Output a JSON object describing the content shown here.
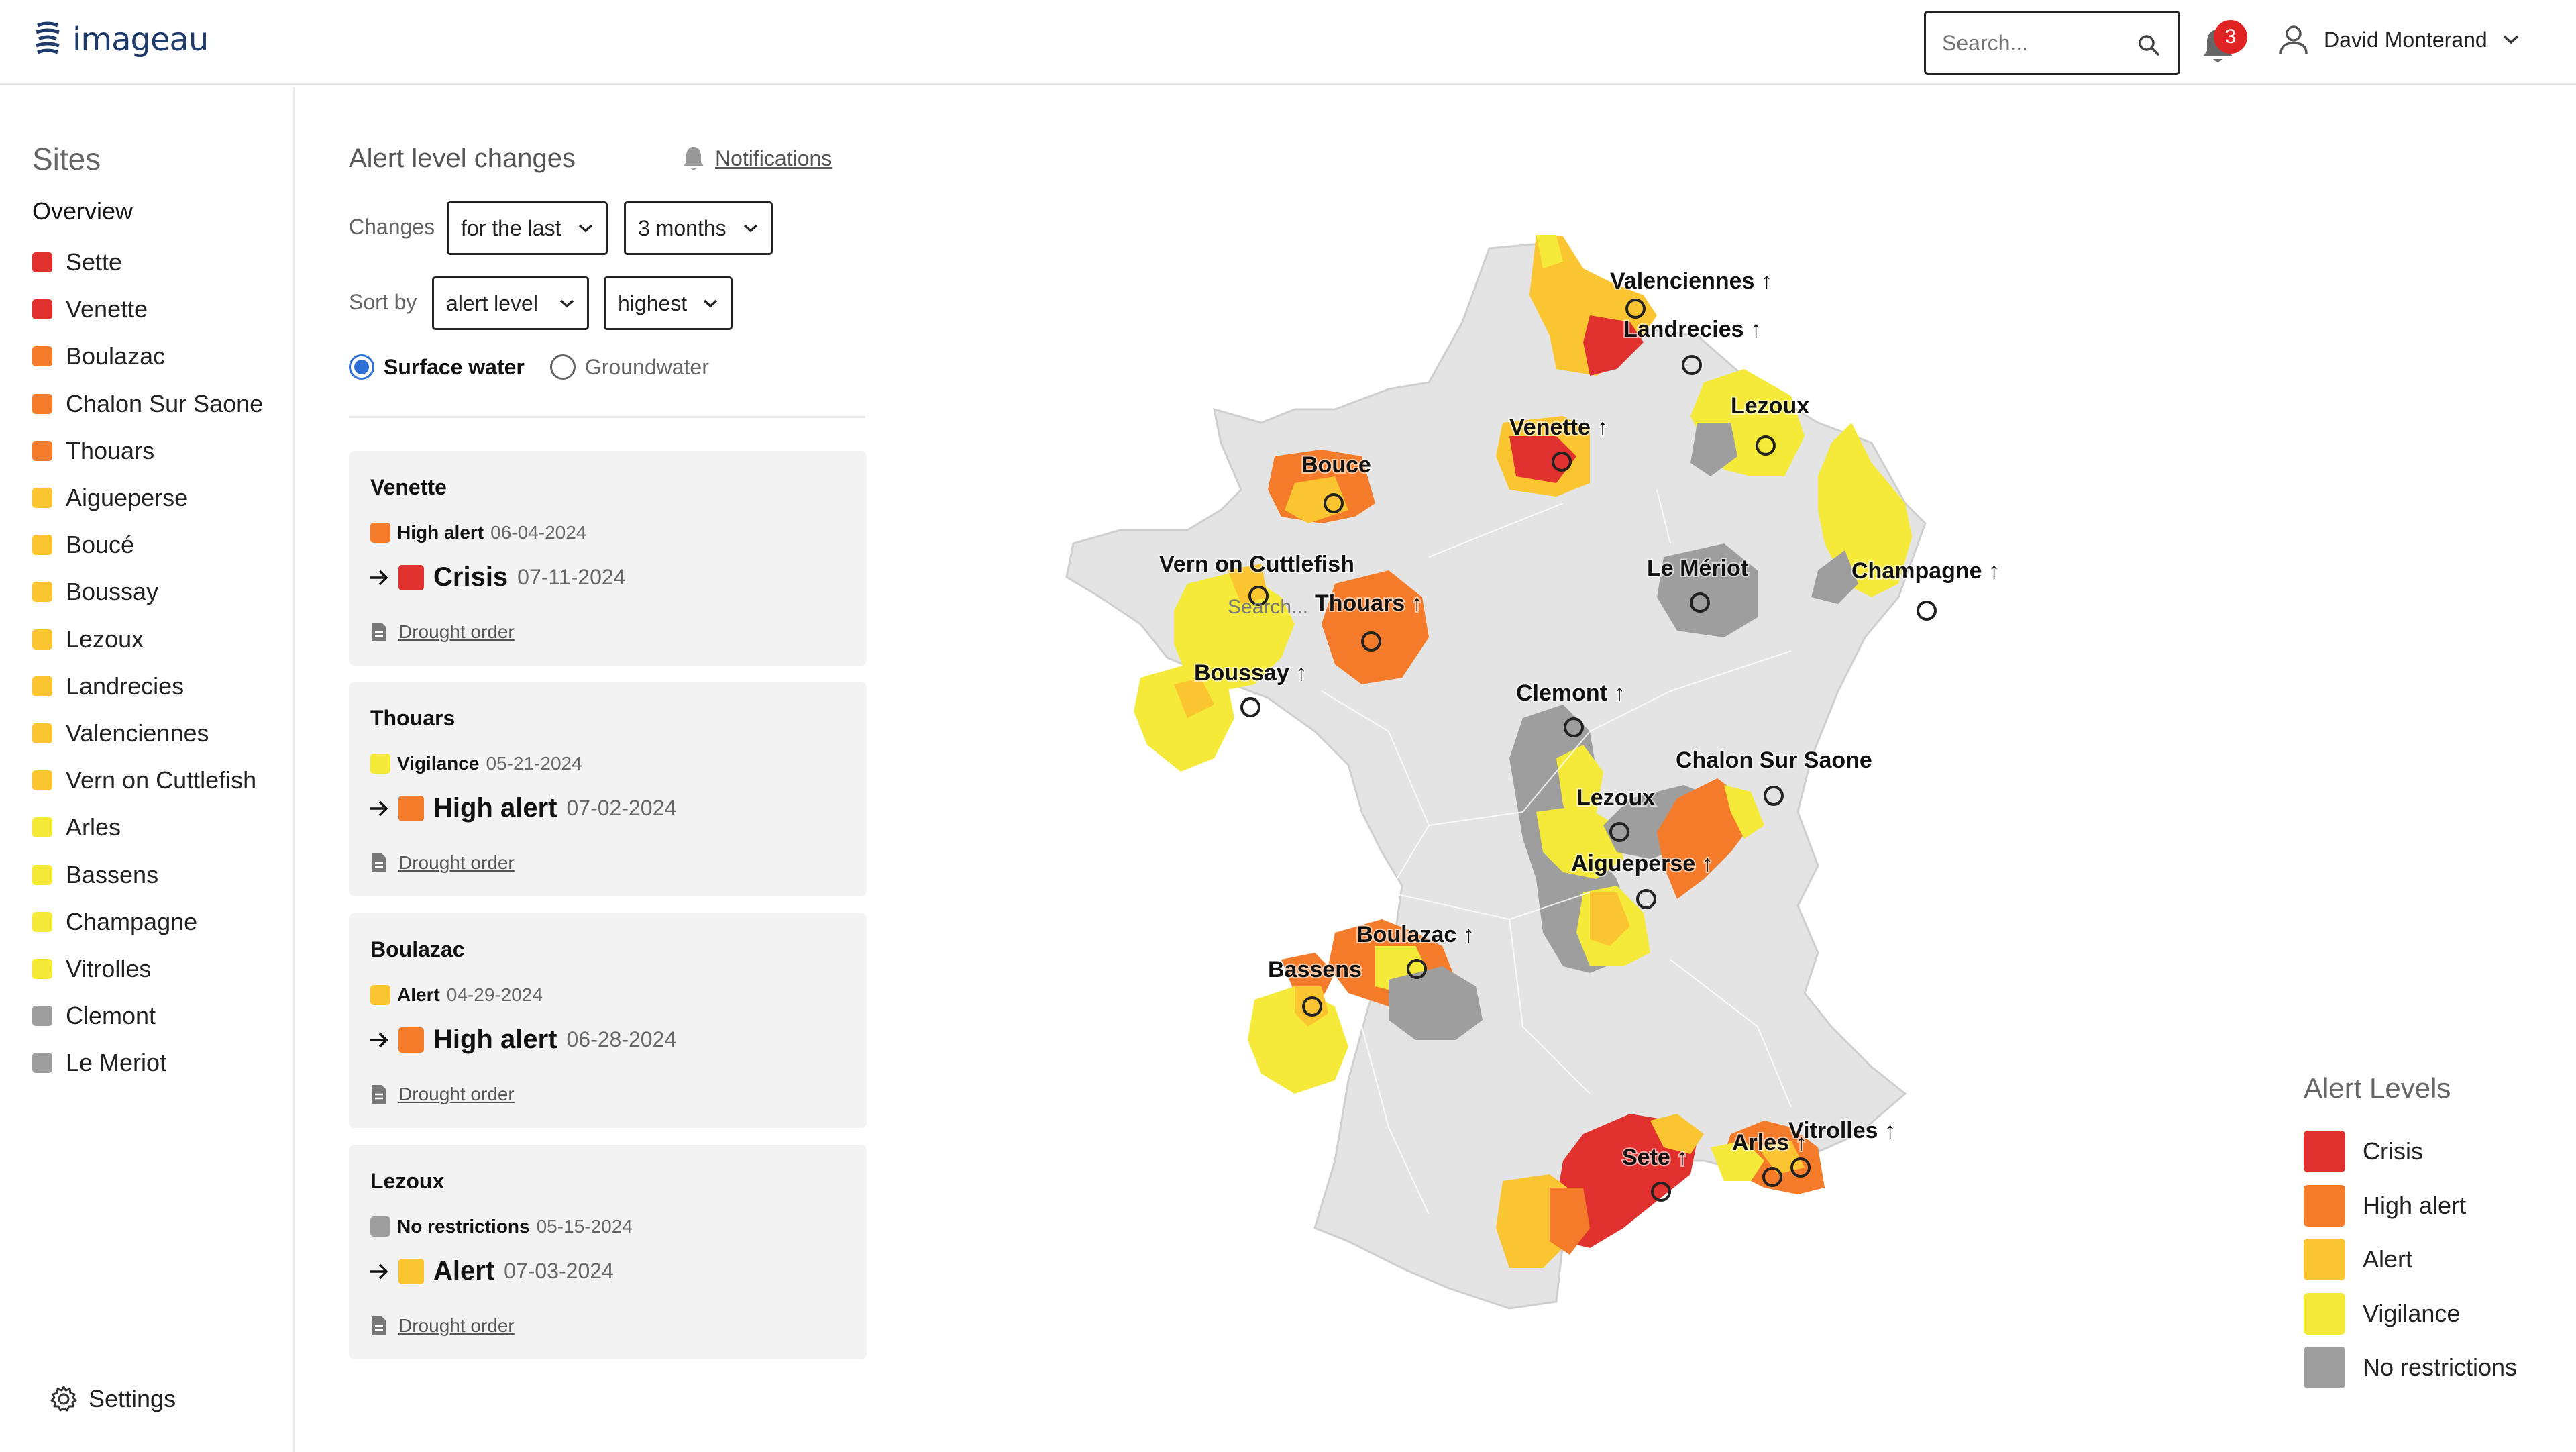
{
  "app": {
    "name": "imageau"
  },
  "header": {
    "search_placeholder": "Search...",
    "notification_count": "3",
    "user_name": "David Monterand"
  },
  "colors": {
    "crisis": "#e0312e",
    "high_alert": "#f47b2a",
    "alert": "#fbc531",
    "vigilance": "#f5ea3a",
    "no_restrictions": "#9e9e9e",
    "accent": "#2f6fd8"
  },
  "sidebar": {
    "title": "Sites",
    "overview_label": "Overview",
    "sites": [
      {
        "name": "Sette",
        "level": "crisis"
      },
      {
        "name": "Venette",
        "level": "crisis"
      },
      {
        "name": "Boulazac",
        "level": "high_alert"
      },
      {
        "name": "Chalon Sur Saone",
        "level": "high_alert"
      },
      {
        "name": "Thouars",
        "level": "high_alert"
      },
      {
        "name": "Aigueperse",
        "level": "alert"
      },
      {
        "name": "Boucé",
        "level": "alert"
      },
      {
        "name": "Boussay",
        "level": "alert"
      },
      {
        "name": "Lezoux",
        "level": "alert"
      },
      {
        "name": "Landrecies",
        "level": "alert"
      },
      {
        "name": "Valenciennes",
        "level": "alert"
      },
      {
        "name": "Vern on Cuttlefish",
        "level": "alert"
      },
      {
        "name": "Arles",
        "level": "vigilance"
      },
      {
        "name": "Bassens",
        "level": "vigilance"
      },
      {
        "name": "Champagne",
        "level": "vigilance"
      },
      {
        "name": "Vitrolles",
        "level": "vigilance"
      },
      {
        "name": "Clemont",
        "level": "no_restrictions"
      },
      {
        "name": "Le Meriot",
        "level": "no_restrictions"
      }
    ],
    "settings_label": "Settings"
  },
  "alerts_panel": {
    "title": "Alert level changes",
    "notifications_label": "Notifications",
    "changes_label": "Changes",
    "changes_period_select": "for the last",
    "changes_range_select": "3 months",
    "sort_label": "Sort by",
    "sort_field_select": "alert level",
    "sort_order_select": "highest",
    "water_types": [
      {
        "label": "Surface water",
        "selected": true
      },
      {
        "label": "Groundwater",
        "selected": false
      }
    ],
    "document_label": "Drought order",
    "cards": [
      {
        "site": "Venette",
        "from_level": "High alert",
        "from_level_key": "high_alert",
        "from_date": "06-04-2024",
        "to_level": "Crisis",
        "to_level_key": "crisis",
        "to_date": "07-11-2024"
      },
      {
        "site": "Thouars",
        "from_level": "Vigilance",
        "from_level_key": "vigilance",
        "from_date": "05-21-2024",
        "to_level": "High alert",
        "to_level_key": "high_alert",
        "to_date": "07-02-2024"
      },
      {
        "site": "Boulazac",
        "from_level": "Alert",
        "from_level_key": "alert",
        "from_date": "04-29-2024",
        "to_level": "High alert",
        "to_level_key": "high_alert",
        "to_date": "06-28-2024"
      },
      {
        "site": "Lezoux",
        "from_level": "No restrictions",
        "from_level_key": "no_restrictions",
        "from_date": "05-15-2024",
        "to_level": "Alert",
        "to_level_key": "alert",
        "to_date": "07-03-2024"
      }
    ]
  },
  "map": {
    "markers": [
      {
        "name": "Valenciennes",
        "arrow": "↑"
      },
      {
        "name": "Landrecies",
        "arrow": "↑"
      },
      {
        "name": "Lezoux",
        "arrow": ""
      },
      {
        "name": "Venette",
        "arrow": "↑"
      },
      {
        "name": "Bouce",
        "arrow": ""
      },
      {
        "name": "Vern on Cuttlefish",
        "arrow": ""
      },
      {
        "name": "Thouars",
        "arrow": "↑"
      },
      {
        "name": "Le Mériot",
        "arrow": ""
      },
      {
        "name": "Champagne",
        "arrow": "↑"
      },
      {
        "name": "Boussay",
        "arrow": "↑"
      },
      {
        "name": "Clemont",
        "arrow": "↑"
      },
      {
        "name": "Chalon Sur Saone",
        "arrow": ""
      },
      {
        "name": "Lezoux",
        "arrow": ""
      },
      {
        "name": "Aigueperse",
        "arrow": "↑"
      },
      {
        "name": "Boulazac",
        "arrow": "↑"
      },
      {
        "name": "Bassens",
        "arrow": ""
      },
      {
        "name": "Sete",
        "arrow": "↑"
      },
      {
        "name": "Arles",
        "arrow": "↑"
      },
      {
        "name": "Vitrolles",
        "arrow": "↑"
      }
    ],
    "search_hint": "Search..."
  },
  "legend": {
    "title": "Alert Levels",
    "items": [
      {
        "label": "Crisis",
        "key": "crisis"
      },
      {
        "label": "High alert",
        "key": "high_alert"
      },
      {
        "label": "Alert",
        "key": "alert"
      },
      {
        "label": "Vigilance",
        "key": "vigilance"
      },
      {
        "label": "No restrictions",
        "key": "no_restrictions"
      }
    ]
  }
}
